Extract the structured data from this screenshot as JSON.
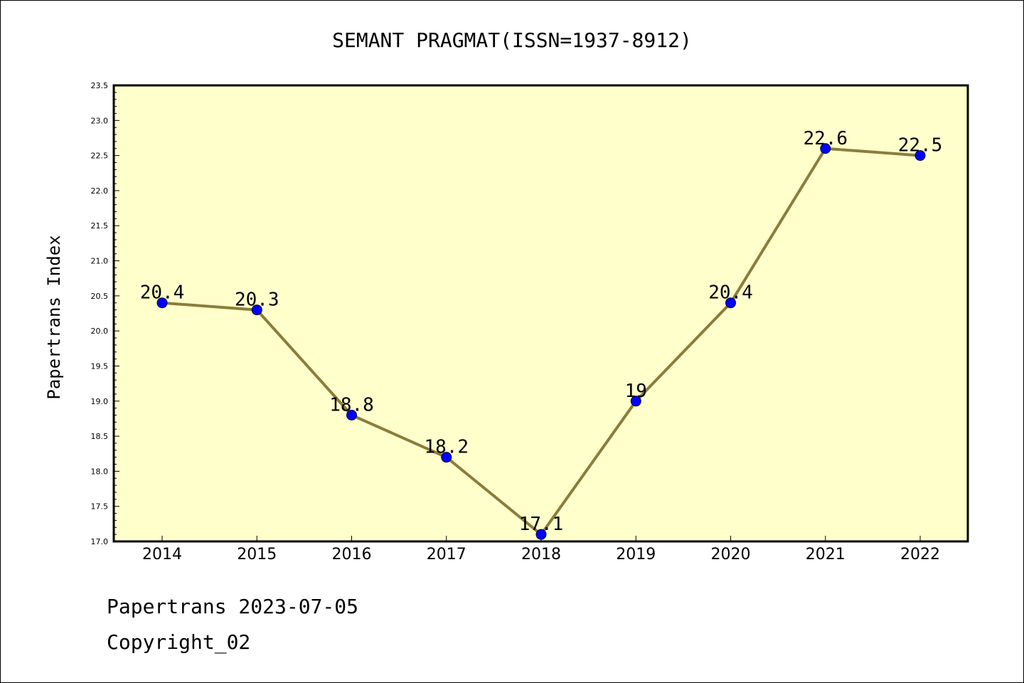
{
  "chart_data": {
    "type": "line",
    "title": "SEMANT PRAGMAT(ISSN=1937-8912)",
    "xlabel": "",
    "ylabel": "Papertrans Index",
    "categories": [
      "2014",
      "2015",
      "2016",
      "2017",
      "2018",
      "2019",
      "2020",
      "2021",
      "2022"
    ],
    "series": [
      {
        "values": [
          20.4,
          20.3,
          18.8,
          18.2,
          17.1,
          19.0,
          20.4,
          22.6,
          22.5
        ]
      }
    ],
    "data_labels": [
      "20.4",
      "20.3",
      "18.8",
      "18.2",
      "17.1",
      "19",
      "20.4",
      "22.6",
      "22.5"
    ],
    "ylim": [
      17.0,
      23.5
    ],
    "yticks": [
      "17.0",
      "17.5",
      "18.0",
      "18.5",
      "19.0",
      "19.5",
      "20.0",
      "20.5",
      "21.0",
      "21.5",
      "22.0",
      "22.5",
      "23.0",
      "23.5"
    ],
    "grid": false,
    "legend": "none",
    "colors": {
      "plot_background": "#ffffcc",
      "line": "#8b7d3a",
      "marker": "#0000ff",
      "axis": "#000000"
    }
  },
  "footer": {
    "line1": "Papertrans 2023-07-05",
    "line2": "Copyright_02"
  }
}
